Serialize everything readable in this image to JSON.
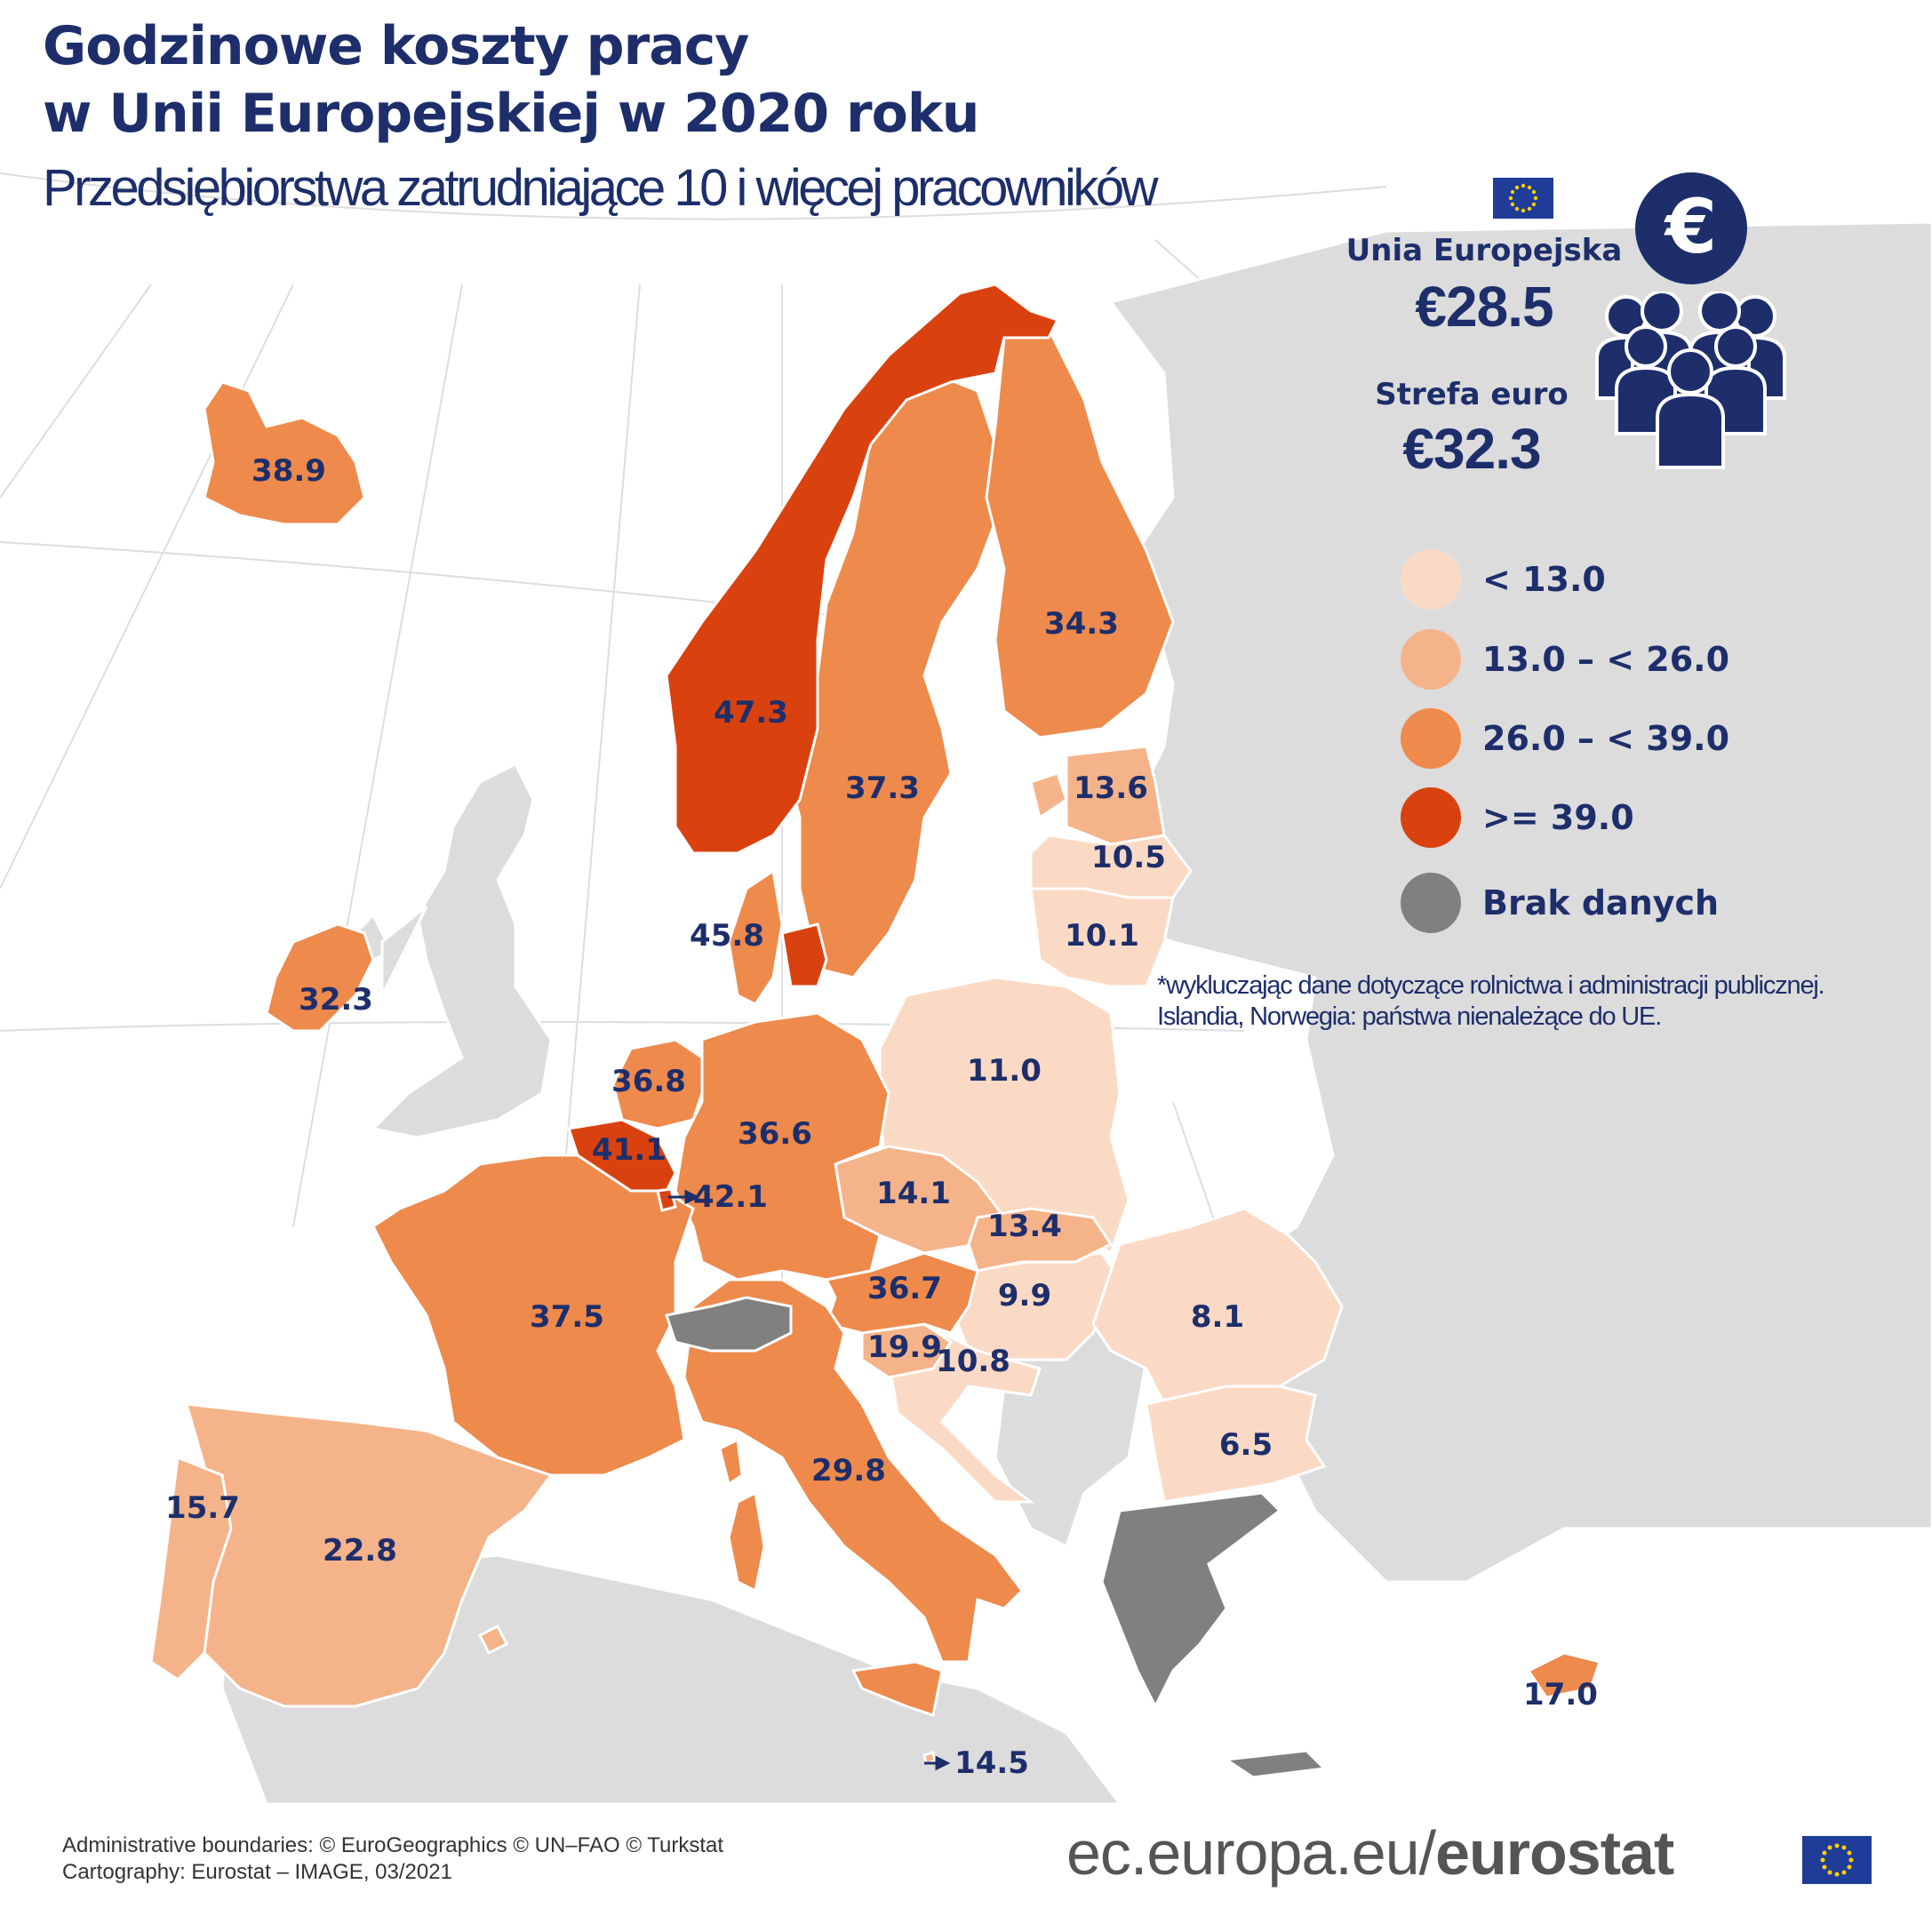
{
  "header": {
    "title_line1": "Godzinowe koszty pracy",
    "title_line2": "w Unii Europejskiej w 2020 roku",
    "subtitle": "Przedsiębiorstwa zatrudniające 10 i więcej pracowników"
  },
  "summary": {
    "eu_label": "Unia Europejska",
    "eu_value": "€28.5",
    "euro_label": "Strefa euro",
    "euro_value": "€32.3",
    "icons": [
      "eu-flag-icon",
      "euro-coin-icon",
      "people-group-icon"
    ]
  },
  "legend": {
    "items": [
      {
        "label": "< 13.0",
        "color": "#fbdac5"
      },
      {
        "label": "13.0 – < 26.0",
        "color": "#f5b38a"
      },
      {
        "label": "26.0 – < 39.0",
        "color": "#ee8a4c"
      },
      {
        "label": ">= 39.0",
        "color": "#d9420f"
      },
      {
        "label": "Brak danych",
        "color": "#808080"
      }
    ]
  },
  "note": {
    "line1": "*wykluczając dane dotyczące rolnictwa i administracji publicznej.",
    "line2": "Islandia, Norwegia: państwa nienależące do UE."
  },
  "map_values": {
    "iceland": "38.9",
    "norway": "47.3",
    "sweden": "37.3",
    "finland": "34.3",
    "estonia": "13.6",
    "latvia": "10.5",
    "lithuania": "10.1",
    "denmark": "45.8",
    "ireland": "32.3",
    "netherlands": "36.8",
    "belgium": "41.1",
    "luxembourg": "42.1",
    "germany": "36.6",
    "poland": "11.0",
    "czechia": "14.1",
    "slovakia": "13.4",
    "austria": "36.7",
    "hungary": "9.9",
    "slovenia": "19.9",
    "croatia": "10.8",
    "romania": "8.1",
    "bulgaria": "6.5",
    "france": "37.5",
    "italy": "29.8",
    "spain": "22.8",
    "portugal": "15.7",
    "malta": "14.5",
    "cyprus": "17.0"
  },
  "footer": {
    "credits_line1": "Administrative boundaries: © EuroGeographics © UN–FAO © Turkstat",
    "credits_line2": "Cartography: Eurostat – IMAGE, 03/2021",
    "url_prefix": "ec.europa.eu/",
    "url_brand": "eurostat"
  }
}
